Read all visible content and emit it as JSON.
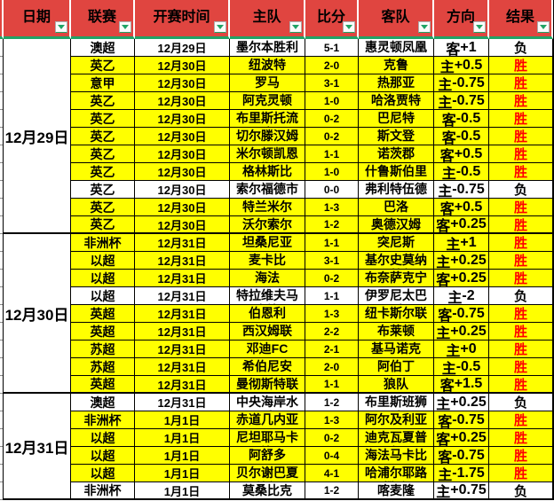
{
  "header": {
    "columns": [
      {
        "label": "日期"
      },
      {
        "label": "联赛"
      },
      {
        "label": "开赛时间"
      },
      {
        "label": "主队"
      },
      {
        "label": "比分"
      },
      {
        "label": "客队"
      },
      {
        "label": "方向"
      },
      {
        "label": "结果"
      }
    ],
    "filter_icon": "filter-dropdown-icon"
  },
  "legend": {
    "win_label": "胜",
    "loss_label": "负"
  },
  "colors": {
    "header_bg": "#E04540",
    "accent_green": "#21A366",
    "highlight_row": "#FFFF00",
    "win_text": "#FF0000",
    "loss_text": "#000000"
  },
  "table": {
    "groups": [
      {
        "date": "12月29日",
        "rows": [
          {
            "league": "澳超",
            "time": "12月29日",
            "home": "墨尔本胜利",
            "score": "5-1",
            "away": "惠灵顿凤凰",
            "direction": "客+1",
            "result": "负",
            "hl": false
          },
          {
            "league": "英乙",
            "time": "12月30日",
            "home": "纽波特",
            "score": "2-0",
            "away": "克鲁",
            "direction": "主+0.5",
            "result": "胜",
            "hl": true
          },
          {
            "league": "意甲",
            "time": "12月30日",
            "home": "罗马",
            "score": "3-1",
            "away": "热那亚",
            "direction": "主-0.75",
            "result": "胜",
            "hl": true
          },
          {
            "league": "英乙",
            "time": "12月30日",
            "home": "阿克灵顿",
            "score": "1-0",
            "away": "哈洛贾特",
            "direction": "主-0.75",
            "result": "胜",
            "hl": true
          },
          {
            "league": "英乙",
            "time": "12月30日",
            "home": "布里斯托流浪",
            "score": "0-2",
            "away": "巴尼特",
            "direction": "客-0.5",
            "result": "胜",
            "hl": true
          },
          {
            "league": "英乙",
            "time": "12月30日",
            "home": "切尔滕汉姆",
            "score": "0-2",
            "away": "斯文登",
            "direction": "客-0.5",
            "result": "胜",
            "hl": true
          },
          {
            "league": "英乙",
            "time": "12月30日",
            "home": "米尔顿凯恩斯",
            "score": "1-1",
            "away": "诺茨郡",
            "direction": "客+0.5",
            "result": "胜",
            "hl": true
          },
          {
            "league": "英乙",
            "time": "12月30日",
            "home": "格林斯比",
            "score": "1-0",
            "away": "什鲁斯伯里",
            "direction": "主-0.5",
            "result": "胜",
            "hl": true
          },
          {
            "league": "英乙",
            "time": "12月30日",
            "home": "索尔福德市",
            "score": "0-0",
            "away": "弗利特伍德",
            "direction": "主-0.75",
            "result": "负",
            "hl": false
          },
          {
            "league": "英乙",
            "time": "12月30日",
            "home": "特兰米尔",
            "score": "1-3",
            "away": "巴洛",
            "direction": "客+0.5",
            "result": "胜",
            "hl": true
          },
          {
            "league": "英乙",
            "time": "12月30日",
            "home": "沃尔索尔",
            "score": "1-2",
            "away": "奥德汉姆",
            "direction": "客+0.25",
            "result": "胜",
            "hl": true
          }
        ]
      },
      {
        "date": "12月30日",
        "rows": [
          {
            "league": "非洲杯",
            "time": "12月31日",
            "home": "坦桑尼亚",
            "score": "1-1",
            "away": "突尼斯",
            "direction": "主+1",
            "result": "胜",
            "hl": true
          },
          {
            "league": "以超",
            "time": "12月31日",
            "home": "麦卡比",
            "score": "3-1",
            "away": "基尔史莫纳夏普尔",
            "direction": "主+0.25",
            "result": "胜",
            "hl": true
          },
          {
            "league": "以超",
            "time": "12月31日",
            "home": "海法",
            "score": "0-2",
            "away": "布奈萨克宁",
            "direction": "客+0.25",
            "result": "胜",
            "hl": true
          },
          {
            "league": "以超",
            "time": "12月31日",
            "home": "特拉维夫马卡比",
            "score": "1-1",
            "away": "伊罗尼太巴列",
            "direction": "主-2",
            "result": "负",
            "hl": false
          },
          {
            "league": "英超",
            "time": "12月31日",
            "home": "伯恩利",
            "score": "1-3",
            "away": "纽卡斯尔联",
            "direction": "客-0.75",
            "result": "胜",
            "hl": true
          },
          {
            "league": "英超",
            "time": "12月31日",
            "home": "西汉姆联",
            "score": "2-2",
            "away": "布莱顿",
            "direction": "主+0.25",
            "result": "胜",
            "hl": true
          },
          {
            "league": "苏超",
            "time": "12月31日",
            "home": "邓迪FC",
            "score": "2-1",
            "away": "基马诺克",
            "direction": "主+0",
            "result": "胜",
            "hl": true
          },
          {
            "league": "苏超",
            "time": "12月31日",
            "home": "希伯尼安",
            "score": "2-0",
            "away": "阿伯丁",
            "direction": "主-0.5",
            "result": "胜",
            "hl": true
          },
          {
            "league": "英超",
            "time": "12月31日",
            "home": "曼彻斯特联",
            "score": "1-1",
            "away": "狼队",
            "direction": "客+1.5",
            "result": "胜",
            "hl": true
          }
        ]
      },
      {
        "date": "12月31日",
        "rows": [
          {
            "league": "澳超",
            "time": "12月31日",
            "home": "中央海岸水手",
            "score": "1-2",
            "away": "布里斯班狮吼",
            "direction": "主+0.25",
            "result": "负",
            "hl": false
          },
          {
            "league": "非洲杯",
            "time": "1月1日",
            "home": "赤道几内亚",
            "score": "1-3",
            "away": "阿尔及利亚",
            "direction": "客-0.75",
            "result": "胜",
            "hl": true
          },
          {
            "league": "以超",
            "time": "1月1日",
            "home": "尼坦耶马卡比",
            "score": "0-2",
            "away": "迪克瓦夏普尔",
            "direction": "客+0.25",
            "result": "胜",
            "hl": true
          },
          {
            "league": "以超",
            "time": "1月1日",
            "home": "阿舒多",
            "score": "0-4",
            "away": "海法马卡比",
            "direction": "客-0.75",
            "result": "胜",
            "hl": true
          },
          {
            "league": "以超",
            "time": "1月1日",
            "home": "贝尔谢巴夏普尔",
            "score": "4-1",
            "away": "哈浦尔耶路撒冷",
            "direction": "主-1.75",
            "result": "胜",
            "hl": true
          },
          {
            "league": "非洲杯",
            "time": "1月1日",
            "home": "莫桑比克",
            "score": "1-2",
            "away": "喀麦隆",
            "direction": "主+0.75",
            "result": "负",
            "hl": false
          }
        ]
      }
    ]
  }
}
